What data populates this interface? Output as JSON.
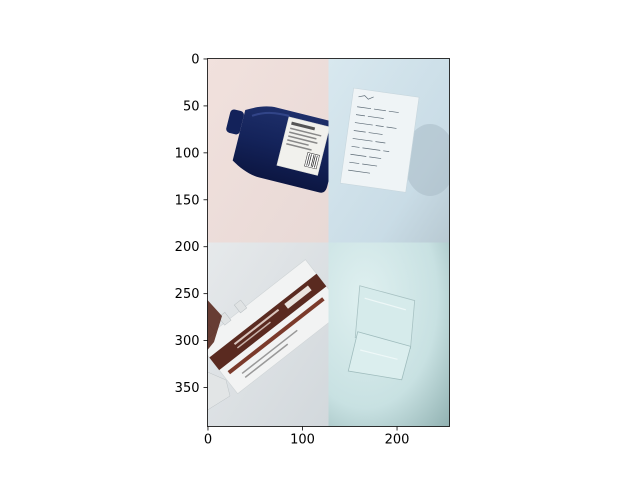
{
  "chart_data": {
    "type": "image",
    "title": "",
    "xlabel": "",
    "ylabel": "",
    "image_width": 256,
    "image_height": 392,
    "xlim": [
      -0.5,
      255.5
    ],
    "ylim": [
      391.5,
      -0.5
    ],
    "y_inverted": true,
    "grid": false,
    "x_ticks": [
      0,
      100,
      200
    ],
    "y_ticks": [
      0,
      50,
      100,
      150,
      200,
      250,
      300,
      350
    ],
    "panels": [
      {
        "name": "panel-bottle",
        "row": 0,
        "col": 0,
        "subject": "dark blue glass bottle with white label",
        "background": "#eddcd8"
      },
      {
        "name": "panel-paper",
        "row": 0,
        "col": 1,
        "subject": "sheet of paper with handwritten notes",
        "background": "#cfe0e8"
      },
      {
        "name": "panel-package",
        "row": 1,
        "col": 0,
        "subject": "white and brown cardboard package",
        "background": "#dde2e6"
      },
      {
        "name": "panel-plastic",
        "row": 1,
        "col": 1,
        "subject": "clear plastic bag",
        "background": "#cfe6e8"
      }
    ]
  }
}
